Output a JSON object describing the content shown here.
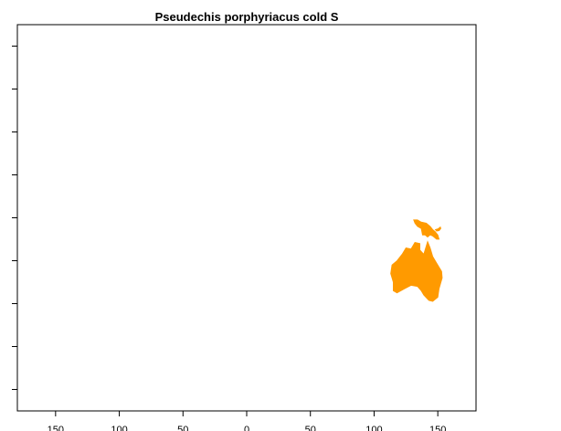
{
  "chart_data": {
    "type": "heatmap",
    "title": "Pseudechis porphyriacus cold S",
    "xlabel": "",
    "ylabel": "",
    "xlim": [
      -180,
      180
    ],
    "ylim": [
      -90,
      90
    ],
    "x_ticks": [
      -150,
      -100,
      -50,
      0,
      50,
      100,
      150
    ],
    "x_tick_labels": [
      "150",
      "100",
      "50",
      "0",
      "50",
      "100",
      "150"
    ],
    "y_ticks": [
      -80,
      -60,
      -40,
      -20,
      0,
      20,
      40,
      60,
      80
    ],
    "grid": false,
    "legend": "none",
    "fill_color": "#ff9a00",
    "regions": [
      {
        "label": "Australia",
        "polygon_lonlat": [
          [
            114,
            -22
          ],
          [
            118,
            -20
          ],
          [
            122,
            -17
          ],
          [
            125,
            -14
          ],
          [
            129,
            -14.5
          ],
          [
            132,
            -11.5
          ],
          [
            136,
            -12
          ],
          [
            136,
            -15
          ],
          [
            139,
            -17
          ],
          [
            142,
            -11
          ],
          [
            144,
            -14
          ],
          [
            146,
            -18
          ],
          [
            149,
            -21
          ],
          [
            153,
            -25
          ],
          [
            153.5,
            -28
          ],
          [
            151,
            -33
          ],
          [
            150,
            -37
          ],
          [
            146,
            -39
          ],
          [
            143,
            -38.5
          ],
          [
            139,
            -36
          ],
          [
            137,
            -34
          ],
          [
            134,
            -32
          ],
          [
            129,
            -31.5
          ],
          [
            124,
            -33
          ],
          [
            118,
            -35
          ],
          [
            115,
            -34
          ],
          [
            115,
            -30
          ],
          [
            113,
            -26
          ]
        ]
      },
      {
        "label": "New Guinea",
        "polygon_lonlat": [
          [
            131,
            -1
          ],
          [
            134,
            -1
          ],
          [
            137,
            -2
          ],
          [
            141,
            -2.5
          ],
          [
            144,
            -4
          ],
          [
            146,
            -5.5
          ],
          [
            148,
            -6.5
          ],
          [
            150,
            -8
          ],
          [
            151,
            -10
          ],
          [
            149,
            -10
          ],
          [
            146,
            -8.5
          ],
          [
            144,
            -8
          ],
          [
            142,
            -9
          ],
          [
            140,
            -8
          ],
          [
            138,
            -8
          ],
          [
            137,
            -5
          ],
          [
            134,
            -4
          ],
          [
            132,
            -2.5
          ]
        ]
      },
      {
        "label": "New Britain",
        "polygon_lonlat": [
          [
            148,
            -5.5
          ],
          [
            150,
            -5.2
          ],
          [
            152,
            -4.3
          ],
          [
            152.4,
            -5
          ],
          [
            151,
            -6
          ],
          [
            149,
            -6.2
          ]
        ]
      }
    ]
  }
}
